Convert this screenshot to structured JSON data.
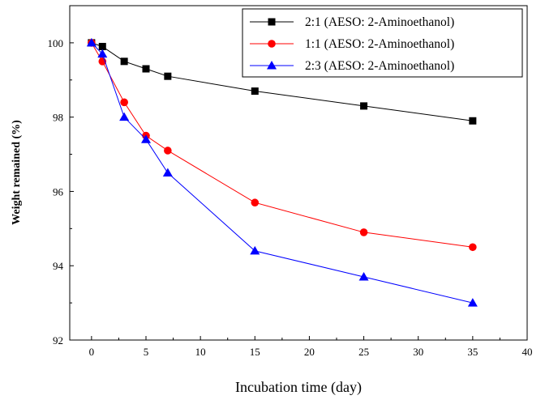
{
  "chart_data": {
    "type": "line",
    "title": "",
    "xlabel": "Incubation time (day)",
    "ylabel": "Weight remained (%)",
    "xlim": [
      -2,
      40
    ],
    "ylim": [
      92,
      101
    ],
    "xticks": [
      0,
      5,
      10,
      15,
      20,
      25,
      30,
      35,
      40
    ],
    "yticks": [
      92,
      94,
      96,
      98,
      100
    ],
    "grid": false,
    "legend_position": "top-right",
    "series": [
      {
        "name": "2:1 (AESO: 2-Aminoethanol)",
        "color": "#000000",
        "marker": "square",
        "x": [
          0,
          1,
          3,
          5,
          7,
          15,
          25,
          35
        ],
        "y": [
          100.0,
          99.9,
          99.5,
          99.3,
          99.1,
          98.7,
          98.3,
          97.9
        ]
      },
      {
        "name": "1:1 (AESO: 2-Aminoethanol)",
        "color": "#ff0000",
        "marker": "circle",
        "x": [
          0,
          1,
          3,
          5,
          7,
          15,
          25,
          35
        ],
        "y": [
          100.0,
          99.5,
          98.4,
          97.5,
          97.1,
          95.7,
          94.9,
          94.5
        ]
      },
      {
        "name": "2:3 (AESO: 2-Aminoethanol)",
        "color": "#0000ff",
        "marker": "triangle",
        "x": [
          0,
          1,
          3,
          5,
          7,
          15,
          25,
          35
        ],
        "y": [
          100.0,
          99.7,
          98.0,
          97.4,
          96.5,
          94.4,
          93.7,
          93.0
        ]
      }
    ]
  }
}
